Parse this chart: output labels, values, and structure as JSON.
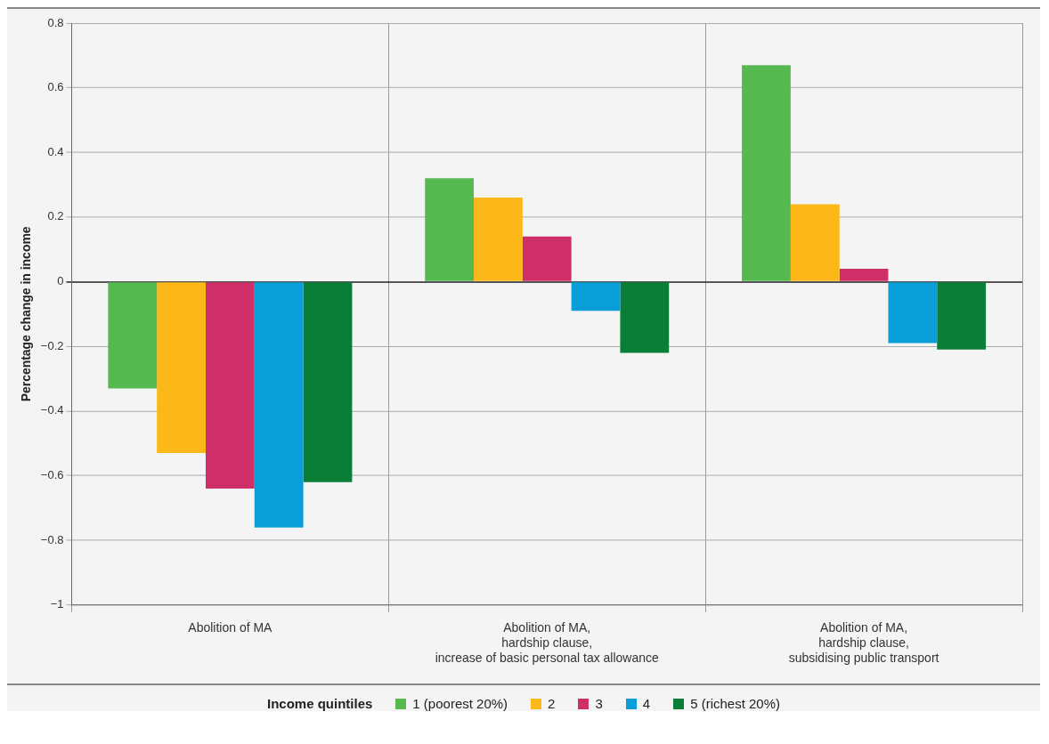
{
  "chart_data": {
    "type": "bar",
    "ylabel": "Percentage change in income",
    "legend_title": "Income quintiles",
    "legend": "bottom",
    "grid": true,
    "categories": [
      "Abolition of MA",
      "Abolition of MA, hardship clause, increase of basic personal tax allowance",
      "Abolition of MA, hardship clause, subsidising public transport"
    ],
    "series": [
      {
        "name": "1 (poorest 20%)",
        "color": "#55b94f",
        "values": [
          -0.33,
          0.32,
          0.67
        ]
      },
      {
        "name": "2",
        "color": "#fbb818",
        "values": [
          -0.53,
          0.26,
          0.24
        ]
      },
      {
        "name": "3",
        "color": "#cf2f68",
        "values": [
          -0.64,
          0.14,
          0.04
        ]
      },
      {
        "name": "4",
        "color": "#0a9ed9",
        "values": [
          -0.76,
          -0.09,
          -0.19
        ]
      },
      {
        "name": "5 (richest 20%)",
        "color": "#0a7d36",
        "values": [
          -0.62,
          -0.22,
          -0.21
        ]
      }
    ],
    "ylim": [
      -1,
      0.8
    ],
    "yticks": [
      {
        "value": -1,
        "label": "−1"
      },
      {
        "value": -0.8,
        "label": "−0.8"
      },
      {
        "value": -0.6,
        "label": "−0.6"
      },
      {
        "value": -0.4,
        "label": "−0.4"
      },
      {
        "value": -0.2,
        "label": "−0.2"
      },
      0,
      0.2,
      0.4,
      0.6,
      0.8
    ]
  }
}
